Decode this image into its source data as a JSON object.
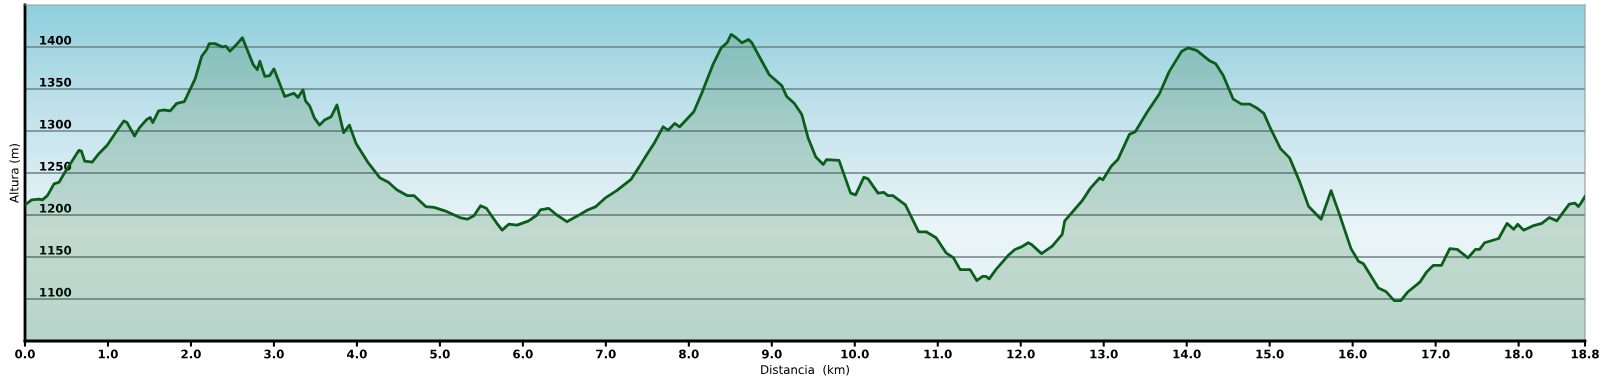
{
  "chart_data": {
    "type": "area",
    "xlabel": "Distancia  (km)",
    "ylabel": "Altura (m)",
    "xlim": [
      0,
      18.8
    ],
    "ylim": [
      1050,
      1450
    ],
    "xticks": [
      {
        "value": 0,
        "label": "0.0"
      },
      {
        "value": 1,
        "label": "1.0"
      },
      {
        "value": 2,
        "label": "2.0"
      },
      {
        "value": 3,
        "label": "3.0"
      },
      {
        "value": 4,
        "label": "4.0"
      },
      {
        "value": 5,
        "label": "5.0"
      },
      {
        "value": 6,
        "label": "6.0"
      },
      {
        "value": 7,
        "label": "7.0"
      },
      {
        "value": 8,
        "label": "8.0"
      },
      {
        "value": 9,
        "label": "9.0"
      },
      {
        "value": 10,
        "label": "10.0"
      },
      {
        "value": 11,
        "label": "11.0"
      },
      {
        "value": 12,
        "label": "12.0"
      },
      {
        "value": 13,
        "label": "13.0"
      },
      {
        "value": 14,
        "label": "14.0"
      },
      {
        "value": 15,
        "label": "15.0"
      },
      {
        "value": 16,
        "label": "16.0"
      },
      {
        "value": 17,
        "label": "17.0"
      },
      {
        "value": 18,
        "label": "18.0"
      },
      {
        "value": 18.8,
        "label": "18.8"
      }
    ],
    "yticks": [
      1100,
      1150,
      1200,
      1250,
      1300,
      1350,
      1400
    ],
    "grid": "y",
    "series": [
      {
        "color": "#0b5e1a",
        "x": [
          0.0,
          0.08,
          0.17,
          0.21,
          0.27,
          0.35,
          0.41,
          0.5,
          0.56,
          0.65,
          0.68,
          0.72,
          0.81,
          0.89,
          0.99,
          1.1,
          1.19,
          1.23,
          1.32,
          1.38,
          1.47,
          1.51,
          1.54,
          1.61,
          1.67,
          1.75,
          1.83,
          1.92,
          2.05,
          2.13,
          2.19,
          2.22,
          2.29,
          2.38,
          2.42,
          2.47,
          2.54,
          2.62,
          2.75,
          2.8,
          2.83,
          2.89,
          2.95,
          3.0,
          3.13,
          3.24,
          3.29,
          3.35,
          3.38,
          3.43,
          3.49,
          3.55,
          3.61,
          3.69,
          3.76,
          3.84,
          3.91,
          3.99,
          4.13,
          4.28,
          4.38,
          4.48,
          4.61,
          4.69,
          4.83,
          4.93,
          5.06,
          5.24,
          5.33,
          5.41,
          5.49,
          5.56,
          5.68,
          5.75,
          5.83,
          5.93,
          6.07,
          6.17,
          6.21,
          6.31,
          6.41,
          6.53,
          6.66,
          6.78,
          6.88,
          6.99,
          7.13,
          7.3,
          7.4,
          7.5,
          7.58,
          7.69,
          7.75,
          7.83,
          7.89,
          8.06,
          8.16,
          8.29,
          8.35,
          8.39,
          8.46,
          8.51,
          8.57,
          8.64,
          8.72,
          8.76,
          8.88,
          8.97,
          9.12,
          9.18,
          9.27,
          9.36,
          9.44,
          9.53,
          9.62,
          9.66,
          9.81,
          9.95,
          10.01,
          10.11,
          10.16,
          10.28,
          10.35,
          10.4,
          10.46,
          10.61,
          10.77,
          10.86,
          10.98,
          11.1,
          11.19,
          11.27,
          11.39,
          11.47,
          11.54,
          11.58,
          11.62,
          11.7,
          11.85,
          11.93,
          12.01,
          12.09,
          12.13,
          12.25,
          12.38,
          12.5,
          12.53,
          12.74,
          12.84,
          12.95,
          12.99,
          13.09,
          13.17,
          13.31,
          13.38,
          13.52,
          13.67,
          13.79,
          13.94,
          14.02,
          14.12,
          14.27,
          14.35,
          14.44,
          14.56,
          14.66,
          14.76,
          14.85,
          14.93,
          15.01,
          15.13,
          15.24,
          15.36,
          15.47,
          15.62,
          15.74,
          15.84,
          15.98,
          16.07,
          16.13,
          16.31,
          16.4,
          16.5,
          16.58,
          16.66,
          16.81,
          16.89,
          16.97,
          17.07,
          17.17,
          17.26,
          17.39,
          17.48,
          17.53,
          17.59,
          17.76,
          17.86,
          17.94,
          17.99,
          18.06,
          18.17,
          18.28,
          18.37,
          18.46,
          18.61,
          18.68,
          18.72,
          18.75,
          18.8
        ],
        "values": [
          1212,
          1218,
          1219,
          1218,
          1223,
          1237,
          1239,
          1254,
          1263,
          1277,
          1276,
          1264,
          1263,
          1273,
          1283,
          1299,
          1312,
          1310,
          1294,
          1304,
          1314,
          1316,
          1310,
          1324,
          1325,
          1324,
          1333,
          1335,
          1362,
          1389,
          1397,
          1404,
          1404,
          1400,
          1401,
          1395,
          1402,
          1411,
          1379,
          1373,
          1383,
          1365,
          1366,
          1374,
          1341,
          1345,
          1340,
          1349,
          1336,
          1330,
          1315,
          1307,
          1313,
          1317,
          1331,
          1298,
          1307,
          1285,
          1263,
          1244,
          1239,
          1230,
          1223,
          1223,
          1210,
          1209,
          1205,
          1197,
          1195,
          1199,
          1211,
          1208,
          1191,
          1182,
          1189,
          1188,
          1193,
          1200,
          1206,
          1208,
          1200,
          1192,
          1199,
          1206,
          1210,
          1220,
          1229,
          1242,
          1257,
          1273,
          1285,
          1305,
          1301,
          1309,
          1305,
          1323,
          1346,
          1379,
          1391,
          1399,
          1405,
          1415,
          1411,
          1405,
          1409,
          1405,
          1383,
          1367,
          1354,
          1341,
          1333,
          1320,
          1291,
          1269,
          1260,
          1266,
          1265,
          1226,
          1224,
          1245,
          1243,
          1226,
          1227,
          1223,
          1223,
          1212,
          1180,
          1180,
          1173,
          1155,
          1149,
          1135,
          1135,
          1122,
          1127,
          1127,
          1124,
          1135,
          1152,
          1159,
          1162,
          1167,
          1165,
          1154,
          1163,
          1177,
          1193,
          1217,
          1232,
          1244,
          1242,
          1258,
          1266,
          1296,
          1299,
          1322,
          1344,
          1371,
          1395,
          1399,
          1396,
          1384,
          1380,
          1366,
          1338,
          1332,
          1332,
          1327,
          1321,
          1303,
          1279,
          1268,
          1240,
          1210,
          1195,
          1229,
          1201,
          1160,
          1145,
          1142,
          1113,
          1109,
          1098,
          1098,
          1108,
          1120,
          1132,
          1140,
          1140,
          1160,
          1159,
          1149,
          1159,
          1159,
          1167,
          1172,
          1190,
          1183,
          1189,
          1182,
          1187,
          1190,
          1197,
          1193,
          1213,
          1214,
          1210,
          1214,
          1222
        ]
      }
    ]
  }
}
